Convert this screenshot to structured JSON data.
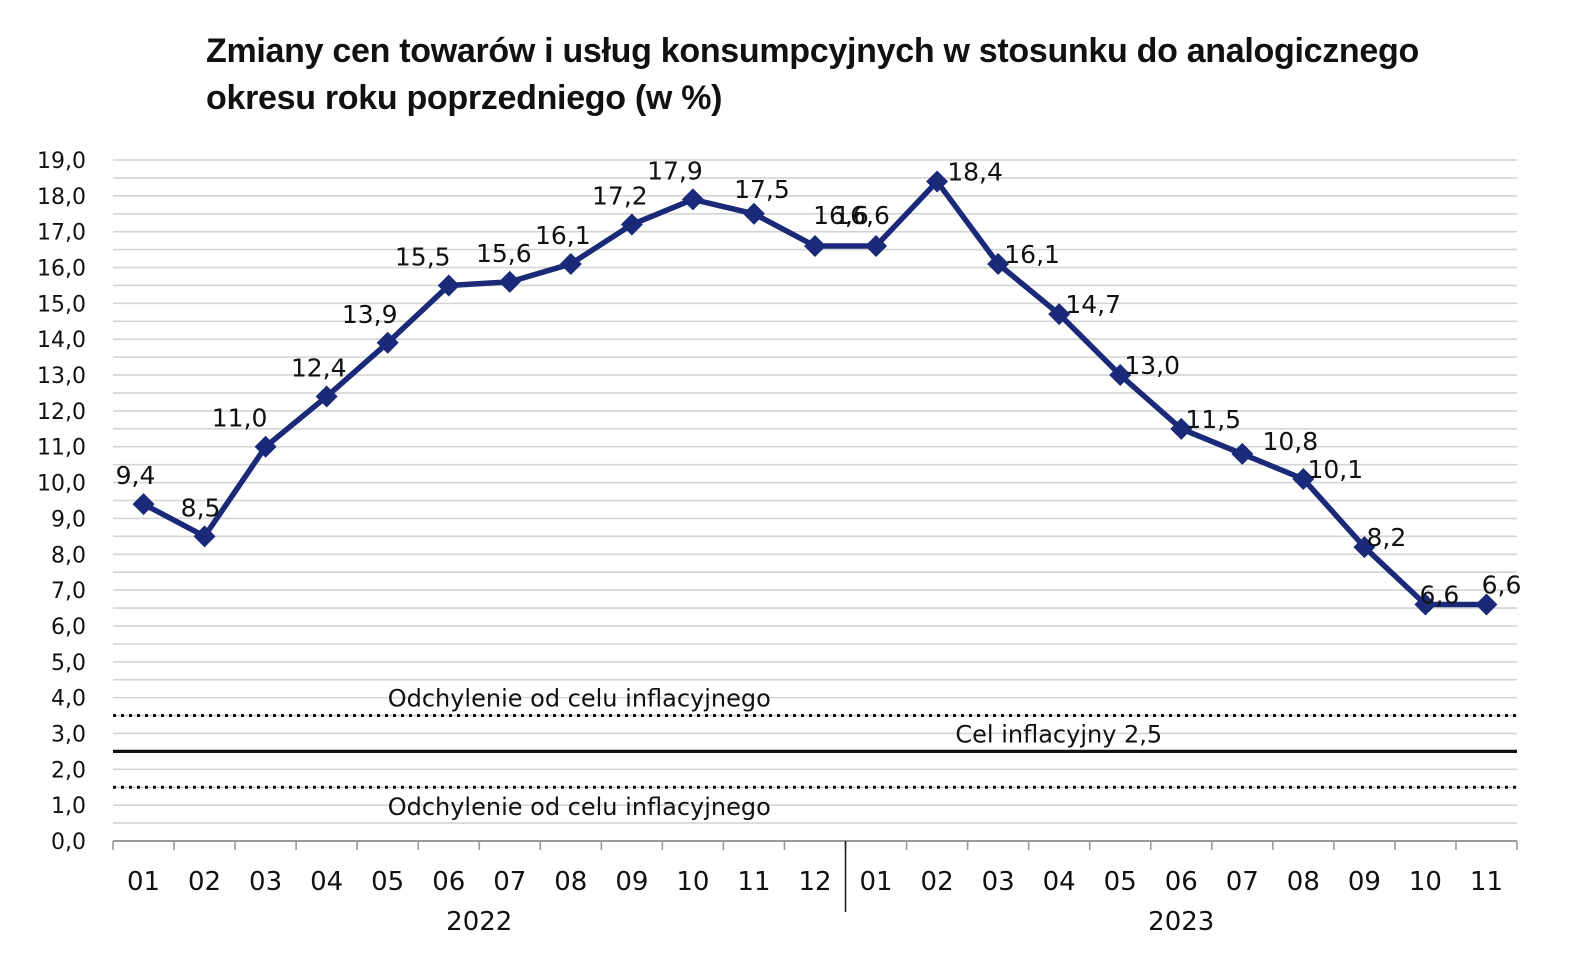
{
  "chart_data": {
    "type": "line",
    "title": "Zmiany cen towarów i usług konsumpcyjnych w stosunku do analogicznego",
    "title_line2": "okresu roku poprzedniego (w %)",
    "categories": [
      "01",
      "02",
      "03",
      "04",
      "05",
      "06",
      "07",
      "08",
      "09",
      "10",
      "11",
      "12",
      "01",
      "02",
      "03",
      "04",
      "05",
      "06",
      "07",
      "08",
      "09",
      "10",
      "11"
    ],
    "values": [
      9.4,
      8.5,
      11.0,
      12.4,
      13.9,
      15.5,
      15.6,
      16.1,
      17.2,
      17.9,
      17.5,
      16.6,
      16.6,
      18.4,
      16.1,
      14.7,
      13.0,
      11.5,
      10.8,
      10.1,
      8.2,
      6.6,
      6.6
    ],
    "value_labels": [
      "9,4",
      "8,5",
      "11,0",
      "12,4",
      "13,9",
      "15,5",
      "15,6",
      "16,1",
      "17,2",
      "17,9",
      "17,5",
      "16,6",
      "16,6",
      "18,4",
      "16,1",
      "14,7",
      "13,0",
      "11,5",
      "10,8",
      "10,1",
      "8,2",
      "6,6",
      "6,6"
    ],
    "year_groups": [
      {
        "label": "2022",
        "start": 0,
        "end": 11
      },
      {
        "label": "2023",
        "start": 12,
        "end": 22
      }
    ],
    "y_ticks": [
      "0,0",
      "1,0",
      "2,0",
      "3,0",
      "4,0",
      "5,0",
      "6,0",
      "7,0",
      "8,0",
      "9,0",
      "10,0",
      "11,0",
      "12,0",
      "13,0",
      "14,0",
      "15,0",
      "16,0",
      "17,0",
      "18,0",
      "19,0"
    ],
    "ylim": [
      0,
      19
    ],
    "grid": true,
    "series_color": "#1b2a78",
    "reference_lines": [
      {
        "value": 3.5,
        "style": "dotted",
        "label": "Odchylenie od celu inflacyjnego",
        "label_position": "above",
        "label_start_index": 4.5
      },
      {
        "value": 2.5,
        "style": "solid",
        "label": "Cel inflacyjny 2,5",
        "label_position": "above",
        "label_start_index": 13.8
      },
      {
        "value": 1.5,
        "style": "dotted",
        "label": "Odchylenie od celu inflacyjnego",
        "label_position": "below",
        "label_start_index": 4.5
      }
    ]
  }
}
